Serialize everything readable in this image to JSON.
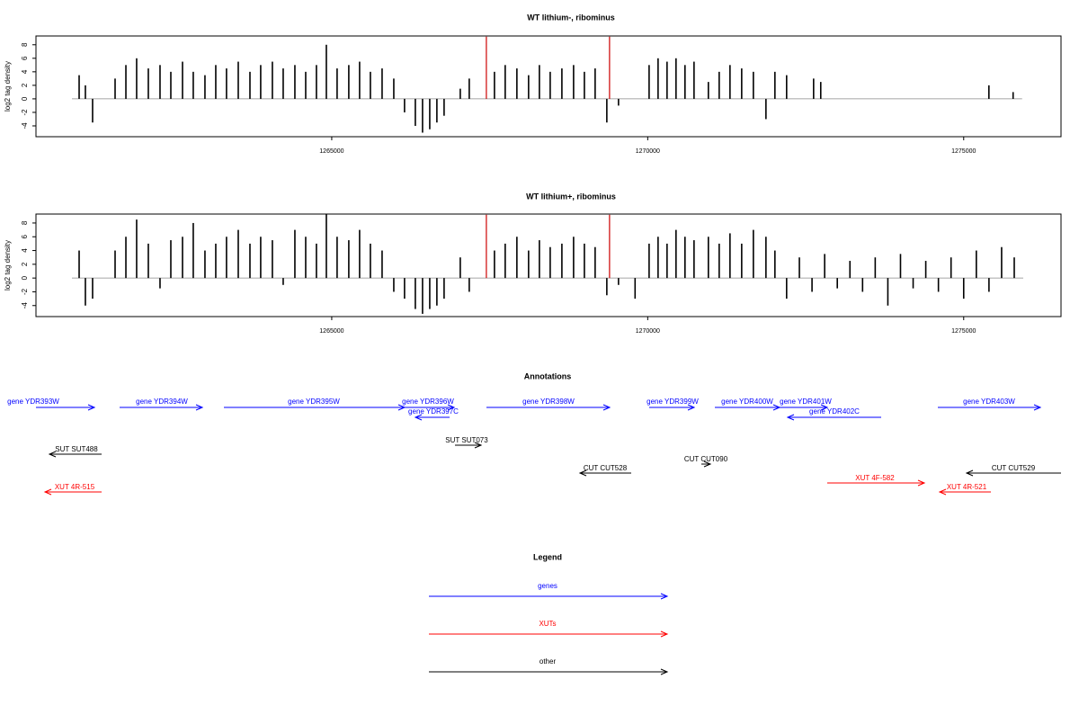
{
  "chart_data": [
    {
      "type": "bar",
      "title": "WT lithium-, ribominus",
      "ylabel": "log2 tag density",
      "xlim": [
        1260320,
        1276540
      ],
      "ylim": [
        -5.6,
        9.3
      ],
      "xticks": [
        1265000,
        1270000,
        1275000
      ],
      "yticks": [
        -4,
        -2,
        0,
        2,
        4,
        6,
        8
      ],
      "color": "#000000",
      "x": [
        1261003,
        1261102,
        1261216,
        1261572,
        1261743,
        1261913,
        1262098,
        1262283,
        1262454,
        1262639,
        1262809,
        1262994,
        1263165,
        1263335,
        1263521,
        1263706,
        1263876,
        1264061,
        1264232,
        1264417,
        1264588,
        1264758,
        1264915,
        1265085,
        1265270,
        1265441,
        1265612,
        1265797,
        1265982,
        1266152,
        1266323,
        1266437,
        1266551,
        1266664,
        1266778,
        1267034,
        1267176,
        1267575,
        1267745,
        1267930,
        1268115,
        1268286,
        1268457,
        1268642,
        1268827,
        1268998,
        1269168,
        1269353,
        1269538,
        1270022,
        1270164,
        1270306,
        1270448,
        1270590,
        1270733,
        1270960,
        1271131,
        1271302,
        1271487,
        1271672,
        1271871,
        1272013,
        1272198,
        1272625,
        1272738,
        1275399,
        1275782
      ],
      "values": [
        3.5,
        2,
        -3.5,
        3,
        5,
        6,
        4.5,
        5,
        4,
        5.5,
        4,
        3.5,
        5,
        4.5,
        5.5,
        4,
        5,
        5.5,
        4.5,
        5,
        4,
        5,
        8,
        4.5,
        5,
        5.5,
        4,
        4.5,
        3,
        -2,
        -4,
        -5,
        -4.5,
        -3.5,
        -2.5,
        1.5,
        3,
        4,
        5,
        4.5,
        3.5,
        5,
        4,
        4.5,
        5,
        4,
        4.5,
        -3.5,
        -1,
        5,
        6,
        5.5,
        6,
        5,
        5.5,
        2.5,
        4,
        5,
        4.5,
        4,
        -3,
        4,
        3.5,
        3,
        2.5,
        2,
        1
      ],
      "highlights": {
        "color": "#cc0000",
        "x": [
          1267447,
          1269396
        ],
        "values": [
          9.2,
          9.2
        ]
      }
    },
    {
      "type": "bar",
      "title": "WT lithium+, ribominus",
      "ylabel": "log2 tag density",
      "xlim": [
        1260320,
        1276540
      ],
      "ylim": [
        -5.6,
        9.3
      ],
      "xticks": [
        1265000,
        1270000,
        1275000
      ],
      "yticks": [
        -4,
        -2,
        0,
        2,
        4,
        6,
        8
      ],
      "color": "#000000",
      "x": [
        1261003,
        1261102,
        1261216,
        1261572,
        1261743,
        1261913,
        1262098,
        1262283,
        1262454,
        1262639,
        1262809,
        1262994,
        1263165,
        1263335,
        1263521,
        1263706,
        1263876,
        1264061,
        1264232,
        1264417,
        1264588,
        1264758,
        1264915,
        1265085,
        1265270,
        1265441,
        1265612,
        1265797,
        1265982,
        1266152,
        1266323,
        1266437,
        1266551,
        1266664,
        1266778,
        1267034,
        1267176,
        1267575,
        1267745,
        1267930,
        1268115,
        1268286,
        1268457,
        1268642,
        1268827,
        1268998,
        1269168,
        1269353,
        1269538,
        1269800,
        1270022,
        1270164,
        1270306,
        1270448,
        1270590,
        1270733,
        1270960,
        1271131,
        1271302,
        1271487,
        1271672,
        1271871,
        1272013,
        1272198,
        1272400,
        1272600,
        1272800,
        1273000,
        1273200,
        1273400,
        1273600,
        1273800,
        1274000,
        1274200,
        1274400,
        1274600,
        1274800,
        1275000,
        1275200,
        1275400,
        1275600,
        1275800
      ],
      "values": [
        4,
        -4,
        -3,
        4,
        6,
        8.5,
        5,
        -1.5,
        5.5,
        6,
        8,
        4,
        5,
        6,
        7,
        5,
        6,
        5.5,
        -1,
        7,
        6,
        5,
        9.3,
        6,
        5.5,
        7,
        5,
        4,
        -2,
        -3,
        -4.5,
        -5.2,
        -4.5,
        -4,
        -3,
        3,
        -2,
        4,
        5,
        6,
        4,
        5.5,
        4.5,
        5,
        6,
        5,
        4.5,
        -2.5,
        -1,
        -3,
        5,
        6,
        5,
        7,
        6,
        5.5,
        6,
        5,
        6.5,
        5,
        7,
        6,
        4,
        -3,
        3,
        -2,
        3.5,
        -1.5,
        2.5,
        -2,
        3,
        -4,
        3.5,
        -1.5,
        2.5,
        -2,
        3,
        -3,
        4,
        -2,
        4.5,
        3
      ],
      "highlights": {
        "color": "#cc0000",
        "x": [
          1267447,
          1269396
        ],
        "values": [
          9.2,
          9.2
        ]
      }
    }
  ],
  "annotations": {
    "title": "Annotations",
    "features": [
      {
        "label": "gene YDR393W",
        "color": "#0000ff"
      },
      {
        "label": "gene YDR394W",
        "color": "#0000ff"
      },
      {
        "label": "gene YDR395W",
        "color": "#0000ff"
      },
      {
        "label": "gene YDR396W",
        "color": "#0000ff"
      },
      {
        "label": "gene YDR397C",
        "color": "#0000ff"
      },
      {
        "label": "gene YDR398W",
        "color": "#0000ff"
      },
      {
        "label": "gene YDR399W",
        "color": "#0000ff"
      },
      {
        "label": "gene YDR400W",
        "color": "#0000ff"
      },
      {
        "label": "gene YDR401W",
        "color": "#0000ff"
      },
      {
        "label": "gene YDR402C",
        "color": "#0000ff"
      },
      {
        "label": "gene YDR403W",
        "color": "#0000ff"
      },
      {
        "label": "SUT SUT488",
        "color": "#000000"
      },
      {
        "label": "SUT SUT073",
        "color": "#000000"
      },
      {
        "label": "CUT CUT528",
        "color": "#000000"
      },
      {
        "label": "CUT CUT090",
        "color": "#000000"
      },
      {
        "label": "CUT CUT529",
        "color": "#000000"
      },
      {
        "label": "XUT 4F-582",
        "color": "#ff0000"
      },
      {
        "label": "XUT 4R-515",
        "color": "#ff0000"
      },
      {
        "label": "XUT 4R-521",
        "color": "#ff0000"
      }
    ]
  },
  "legend": {
    "title": "Legend",
    "entries": [
      {
        "label": "genes",
        "color": "#0000ff"
      },
      {
        "label": "XUTs",
        "color": "#ff0000"
      },
      {
        "label": "other",
        "color": "#000000"
      }
    ]
  }
}
